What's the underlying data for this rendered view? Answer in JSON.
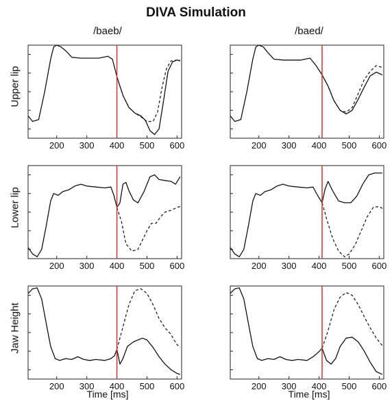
{
  "title": "DIVA Simulation",
  "column_titles": [
    "/baeb/",
    "/baed/"
  ],
  "row_labels": [
    "Upper lip",
    "Lower lip",
    "Jaw Height"
  ],
  "xlabel": "Time [ms]",
  "colors": {
    "trace": "#111111",
    "marker": "#e03030",
    "axis": "#222222"
  },
  "chart_data": {
    "type": "line",
    "title": "DIVA Simulation",
    "xlabel": "Time [ms]",
    "xlim": [
      105,
      615
    ],
    "ylim": [
      0,
      1
    ],
    "xticks": [
      200,
      300,
      400,
      500,
      600
    ],
    "yticks_unlabeled": [
      0.1,
      0.3,
      0.5,
      0.7,
      0.9
    ],
    "grid": false,
    "series_styles": {
      "solid": "solid",
      "dashed": "dashed"
    },
    "panels": [
      {
        "row": "Upper lip",
        "column": "/baeb/",
        "marker_x": 400,
        "solid": [
          [
            105,
            0.24
          ],
          [
            120,
            0.18
          ],
          [
            140,
            0.2
          ],
          [
            160,
            0.5
          ],
          [
            180,
            0.85
          ],
          [
            190,
            0.98
          ],
          [
            200,
            1.0
          ],
          [
            215,
            0.98
          ],
          [
            230,
            0.94
          ],
          [
            250,
            0.87
          ],
          [
            280,
            0.86
          ],
          [
            310,
            0.86
          ],
          [
            340,
            0.86
          ],
          [
            370,
            0.88
          ],
          [
            385,
            0.85
          ],
          [
            400,
            0.66
          ],
          [
            420,
            0.46
          ],
          [
            440,
            0.33
          ],
          [
            460,
            0.27
          ],
          [
            480,
            0.24
          ],
          [
            495,
            0.19
          ],
          [
            510,
            0.08
          ],
          [
            525,
            0.04
          ],
          [
            540,
            0.1
          ],
          [
            555,
            0.4
          ],
          [
            570,
            0.72
          ],
          [
            585,
            0.82
          ],
          [
            600,
            0.84
          ],
          [
            610,
            0.83
          ]
        ],
        "dashed": [
          [
            400,
            0.66
          ],
          [
            420,
            0.46
          ],
          [
            440,
            0.33
          ],
          [
            460,
            0.27
          ],
          [
            480,
            0.23
          ],
          [
            500,
            0.18
          ],
          [
            520,
            0.18
          ],
          [
            535,
            0.28
          ],
          [
            550,
            0.55
          ],
          [
            565,
            0.75
          ],
          [
            580,
            0.83
          ],
          [
            600,
            0.84
          ],
          [
            610,
            0.84
          ]
        ]
      },
      {
        "row": "Upper lip",
        "column": "/baed/",
        "marker_x": 410,
        "solid": [
          [
            105,
            0.24
          ],
          [
            120,
            0.18
          ],
          [
            140,
            0.2
          ],
          [
            160,
            0.5
          ],
          [
            180,
            0.85
          ],
          [
            190,
            0.98
          ],
          [
            200,
            1.0
          ],
          [
            215,
            0.98
          ],
          [
            230,
            0.92
          ],
          [
            250,
            0.85
          ],
          [
            280,
            0.84
          ],
          [
            310,
            0.84
          ],
          [
            340,
            0.84
          ],
          [
            370,
            0.86
          ],
          [
            390,
            0.78
          ],
          [
            410,
            0.68
          ],
          [
            430,
            0.56
          ],
          [
            450,
            0.4
          ],
          [
            470,
            0.3
          ],
          [
            490,
            0.26
          ],
          [
            510,
            0.3
          ],
          [
            530,
            0.42
          ],
          [
            550,
            0.55
          ],
          [
            570,
            0.67
          ],
          [
            590,
            0.71
          ],
          [
            610,
            0.68
          ]
        ],
        "dashed": [
          [
            410,
            0.68
          ],
          [
            430,
            0.56
          ],
          [
            450,
            0.4
          ],
          [
            470,
            0.3
          ],
          [
            490,
            0.28
          ],
          [
            510,
            0.33
          ],
          [
            530,
            0.48
          ],
          [
            550,
            0.63
          ],
          [
            570,
            0.72
          ],
          [
            590,
            0.78
          ],
          [
            610,
            0.76
          ]
        ]
      },
      {
        "row": "Lower lip",
        "column": "/baeb/",
        "marker_x": 400,
        "solid": [
          [
            105,
            0.12
          ],
          [
            120,
            0.05
          ],
          [
            135,
            0.02
          ],
          [
            150,
            0.1
          ],
          [
            165,
            0.35
          ],
          [
            180,
            0.62
          ],
          [
            190,
            0.7
          ],
          [
            205,
            0.68
          ],
          [
            220,
            0.72
          ],
          [
            240,
            0.74
          ],
          [
            260,
            0.78
          ],
          [
            280,
            0.8
          ],
          [
            300,
            0.78
          ],
          [
            330,
            0.77
          ],
          [
            360,
            0.76
          ],
          [
            380,
            0.77
          ],
          [
            390,
            0.68
          ],
          [
            400,
            0.55
          ],
          [
            410,
            0.6
          ],
          [
            420,
            0.8
          ],
          [
            430,
            0.82
          ],
          [
            440,
            0.73
          ],
          [
            455,
            0.63
          ],
          [
            470,
            0.6
          ],
          [
            490,
            0.72
          ],
          [
            510,
            0.88
          ],
          [
            525,
            0.9
          ],
          [
            540,
            0.85
          ],
          [
            560,
            0.84
          ],
          [
            580,
            0.83
          ],
          [
            595,
            0.8
          ],
          [
            610,
            0.88
          ]
        ],
        "dashed": [
          [
            400,
            0.55
          ],
          [
            415,
            0.4
          ],
          [
            430,
            0.16
          ],
          [
            450,
            0.08
          ],
          [
            470,
            0.1
          ],
          [
            485,
            0.2
          ],
          [
            500,
            0.3
          ],
          [
            515,
            0.38
          ],
          [
            530,
            0.38
          ],
          [
            545,
            0.45
          ],
          [
            560,
            0.5
          ],
          [
            580,
            0.52
          ],
          [
            600,
            0.55
          ],
          [
            610,
            0.56
          ]
        ]
      },
      {
        "row": "Lower lip",
        "column": "/baed/",
        "marker_x": 410,
        "solid": [
          [
            105,
            0.12
          ],
          [
            120,
            0.05
          ],
          [
            135,
            0.02
          ],
          [
            150,
            0.1
          ],
          [
            165,
            0.35
          ],
          [
            180,
            0.62
          ],
          [
            190,
            0.7
          ],
          [
            205,
            0.68
          ],
          [
            220,
            0.72
          ],
          [
            240,
            0.74
          ],
          [
            260,
            0.78
          ],
          [
            280,
            0.8
          ],
          [
            300,
            0.78
          ],
          [
            330,
            0.77
          ],
          [
            360,
            0.76
          ],
          [
            380,
            0.77
          ],
          [
            395,
            0.68
          ],
          [
            410,
            0.6
          ],
          [
            420,
            0.75
          ],
          [
            430,
            0.83
          ],
          [
            445,
            0.73
          ],
          [
            465,
            0.62
          ],
          [
            485,
            0.6
          ],
          [
            505,
            0.6
          ],
          [
            525,
            0.67
          ],
          [
            545,
            0.8
          ],
          [
            565,
            0.9
          ],
          [
            585,
            0.92
          ],
          [
            610,
            0.92
          ]
        ],
        "dashed": [
          [
            410,
            0.6
          ],
          [
            425,
            0.43
          ],
          [
            445,
            0.22
          ],
          [
            465,
            0.08
          ],
          [
            485,
            0.02
          ],
          [
            500,
            0.05
          ],
          [
            520,
            0.15
          ],
          [
            540,
            0.3
          ],
          [
            560,
            0.45
          ],
          [
            580,
            0.55
          ],
          [
            600,
            0.56
          ],
          [
            610,
            0.54
          ]
        ]
      },
      {
        "row": "Jaw Height",
        "column": "/baeb/",
        "marker_x": 400,
        "solid": [
          [
            105,
            0.92
          ],
          [
            120,
            0.97
          ],
          [
            135,
            0.98
          ],
          [
            150,
            0.86
          ],
          [
            165,
            0.6
          ],
          [
            180,
            0.35
          ],
          [
            195,
            0.22
          ],
          [
            210,
            0.2
          ],
          [
            230,
            0.22
          ],
          [
            250,
            0.21
          ],
          [
            270,
            0.24
          ],
          [
            290,
            0.21
          ],
          [
            310,
            0.2
          ],
          [
            330,
            0.21
          ],
          [
            360,
            0.2
          ],
          [
            380,
            0.22
          ],
          [
            392,
            0.25
          ],
          [
            400,
            0.32
          ],
          [
            410,
            0.16
          ],
          [
            420,
            0.22
          ],
          [
            435,
            0.35
          ],
          [
            455,
            0.4
          ],
          [
            470,
            0.42
          ],
          [
            485,
            0.44
          ],
          [
            500,
            0.42
          ],
          [
            520,
            0.34
          ],
          [
            540,
            0.24
          ],
          [
            560,
            0.16
          ],
          [
            580,
            0.1
          ],
          [
            600,
            0.06
          ],
          [
            610,
            0.05
          ]
        ],
        "dashed": [
          [
            400,
            0.32
          ],
          [
            420,
            0.56
          ],
          [
            440,
            0.8
          ],
          [
            460,
            0.95
          ],
          [
            480,
            0.97
          ],
          [
            500,
            0.92
          ],
          [
            520,
            0.8
          ],
          [
            540,
            0.65
          ],
          [
            560,
            0.55
          ],
          [
            580,
            0.48
          ],
          [
            590,
            0.42
          ],
          [
            600,
            0.37
          ],
          [
            610,
            0.34
          ]
        ]
      },
      {
        "row": "Jaw Height",
        "column": "/baed/",
        "marker_x": 410,
        "solid": [
          [
            105,
            0.92
          ],
          [
            120,
            0.97
          ],
          [
            135,
            0.98
          ],
          [
            150,
            0.86
          ],
          [
            165,
            0.6
          ],
          [
            180,
            0.35
          ],
          [
            195,
            0.22
          ],
          [
            210,
            0.2
          ],
          [
            230,
            0.22
          ],
          [
            250,
            0.21
          ],
          [
            270,
            0.24
          ],
          [
            290,
            0.21
          ],
          [
            310,
            0.2
          ],
          [
            330,
            0.21
          ],
          [
            360,
            0.2
          ],
          [
            380,
            0.24
          ],
          [
            395,
            0.28
          ],
          [
            410,
            0.33
          ],
          [
            425,
            0.2
          ],
          [
            440,
            0.16
          ],
          [
            455,
            0.22
          ],
          [
            470,
            0.35
          ],
          [
            490,
            0.44
          ],
          [
            510,
            0.45
          ],
          [
            530,
            0.4
          ],
          [
            550,
            0.3
          ],
          [
            570,
            0.18
          ],
          [
            590,
            0.08
          ],
          [
            610,
            0.05
          ]
        ],
        "dashed": [
          [
            410,
            0.33
          ],
          [
            430,
            0.52
          ],
          [
            450,
            0.75
          ],
          [
            470,
            0.88
          ],
          [
            490,
            0.93
          ],
          [
            510,
            0.9
          ],
          [
            530,
            0.8
          ],
          [
            550,
            0.67
          ],
          [
            570,
            0.55
          ],
          [
            590,
            0.44
          ],
          [
            610,
            0.36
          ]
        ]
      }
    ]
  }
}
